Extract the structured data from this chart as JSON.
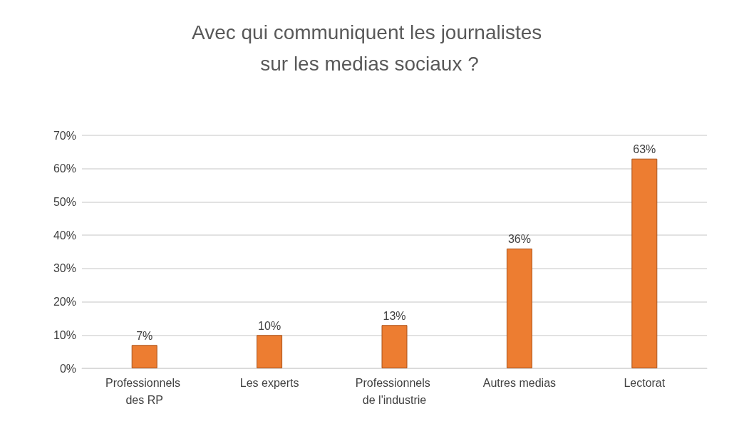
{
  "chart_data": {
    "type": "bar",
    "title": "Avec qui communiquent les journalistes sur les medias sociaux ?",
    "categories": [
      "Professionnels des RP",
      "Les experts",
      "Professionnels de l'industrie",
      "Autres medias",
      "Lectorat"
    ],
    "values": [
      7,
      10,
      13,
      36,
      63
    ],
    "color": "#ed7d31",
    "value_labels": [
      "7%",
      "10%",
      "13%",
      "36%",
      "63%"
    ],
    "ylim": [
      0,
      70
    ],
    "yticks": [
      {
        "value": 0,
        "label": "0%"
      },
      {
        "value": 10,
        "label": "10%"
      },
      {
        "value": 20,
        "label": "20%"
      },
      {
        "value": 30,
        "label": "30%"
      },
      {
        "value": 40,
        "label": "40%"
      },
      {
        "value": 50,
        "label": "50%"
      },
      {
        "value": 60,
        "label": "60%"
      },
      {
        "value": 70,
        "label": "70%"
      }
    ],
    "grid": "y"
  }
}
